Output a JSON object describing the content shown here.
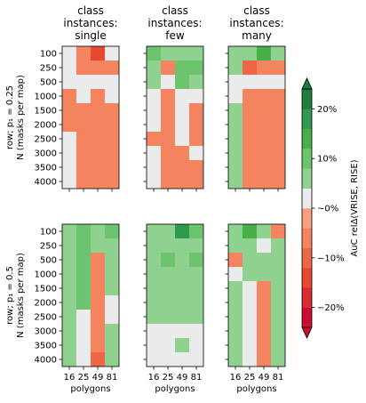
{
  "chart_data": {
    "type": "heatmap",
    "column_titles": [
      "class\ninstances:\nsingle",
      "class\ninstances:\nfew",
      "class\ninstances:\nmany"
    ],
    "row_ylabels": [
      "row; p₁ = 0.25\nN (masks per map)",
      "row; p₁ = 0.5\nN (masks per map)"
    ],
    "xlabel": "polygons",
    "x_categories": [
      "16",
      "25",
      "49",
      "81"
    ],
    "y_categories": [
      "100",
      "250",
      "500",
      "1000",
      "1500",
      "2000",
      "2500",
      "3000",
      "3500",
      "4000"
    ],
    "colorbar": {
      "label": "AuC relΔ(VRISE, RISE)",
      "ticks": [
        "20%",
        "10%",
        "~0%",
        "−10%",
        "−20%"
      ],
      "tick_values": [
        20,
        10,
        0,
        -10,
        -20
      ],
      "range": [
        -24,
        24
      ],
      "extend": "both",
      "colors_negative_to_positive": [
        "#c8102e",
        "#d92b30",
        "#e6492f",
        "#ef6548",
        "#f4845f",
        "#f6a07e",
        "#ebebeb",
        "#8fd28f",
        "#6cc46c",
        "#48b048",
        "#2e9a4f",
        "#1e7d3c"
      ]
    },
    "panels": [
      {
        "column": "single",
        "row": "p1=0.25",
        "values": [
          [
            3,
            -6,
            -13,
            0
          ],
          [
            3,
            -6,
            -6,
            -7
          ],
          [
            3,
            0,
            0,
            0
          ],
          [
            -6,
            0,
            -6,
            0
          ],
          [
            -6,
            -6,
            -7,
            -7
          ],
          [
            -6,
            -6,
            -7,
            -7
          ],
          [
            0,
            -6,
            -6,
            -6
          ],
          [
            0,
            -6,
            -6,
            -6
          ],
          [
            0,
            -6,
            -7,
            -7
          ],
          [
            0,
            -6,
            -7,
            -7
          ]
        ]
      },
      {
        "column": "few",
        "row": "p1=0.25",
        "values": [
          [
            8,
            4,
            4,
            6
          ],
          [
            4,
            -6,
            10,
            9
          ],
          [
            4,
            0,
            8,
            7
          ],
          [
            3,
            -6,
            3,
            0
          ],
          [
            3,
            -6,
            3,
            -6
          ],
          [
            3,
            -6,
            0,
            -6
          ],
          [
            -6,
            -6,
            0,
            -6
          ],
          [
            0,
            -6,
            -6,
            0
          ],
          [
            0,
            -6,
            -6,
            -6
          ],
          [
            0,
            -6,
            -6,
            -6
          ]
        ]
      },
      {
        "column": "many",
        "row": "p1=0.25",
        "values": [
          [
            4,
            4,
            12,
            6
          ],
          [
            4,
            -10,
            -5,
            -5
          ],
          [
            0,
            3,
            3,
            3
          ],
          [
            3,
            -8,
            -5,
            -5
          ],
          [
            5,
            -6,
            -6,
            -5
          ],
          [
            5,
            -6,
            -7,
            -6
          ],
          [
            5,
            -6,
            -6,
            -6
          ],
          [
            5,
            -6,
            -6,
            -7
          ],
          [
            5,
            -6,
            -6,
            -6
          ],
          [
            6,
            -6,
            -6,
            -6
          ]
        ]
      },
      {
        "column": "single",
        "row": "p1=0.5",
        "values": [
          [
            4,
            8,
            4,
            8
          ],
          [
            4,
            8,
            4,
            7
          ],
          [
            4,
            8,
            -6,
            7
          ],
          [
            5,
            8,
            -6,
            4
          ],
          [
            4,
            8,
            -6,
            4
          ],
          [
            4,
            8,
            -6,
            0
          ],
          [
            4,
            0,
            -6,
            0
          ],
          [
            4,
            0,
            -8,
            5
          ],
          [
            4,
            0,
            -8,
            5
          ],
          [
            4,
            0,
            -12,
            5
          ]
        ]
      },
      {
        "column": "few",
        "row": "p1=0.5",
        "values": [
          [
            6,
            5,
            16,
            8
          ],
          [
            5,
            5,
            7,
            6
          ],
          [
            5,
            9,
            4,
            10
          ],
          [
            4,
            5,
            4,
            6
          ],
          [
            4,
            4,
            7,
            4
          ],
          [
            4,
            4,
            4,
            5
          ],
          [
            4,
            4,
            4,
            4
          ],
          [
            3,
            3,
            3,
            3
          ],
          [
            3,
            3,
            5,
            3
          ],
          [
            3,
            3,
            3,
            3
          ]
        ]
      },
      {
        "column": "many",
        "row": "p1=0.5",
        "values": [
          [
            4,
            12,
            6,
            -8
          ],
          [
            4,
            6,
            0,
            5
          ],
          [
            -8,
            5,
            5,
            4
          ],
          [
            0,
            5,
            4,
            4
          ],
          [
            6,
            0,
            -6,
            4
          ],
          [
            6,
            0,
            -6,
            4
          ],
          [
            6,
            0,
            -6,
            4
          ],
          [
            6,
            0,
            -6,
            4
          ],
          [
            6,
            0,
            -6,
            4
          ],
          [
            6,
            0,
            -7,
            4
          ]
        ]
      }
    ]
  }
}
